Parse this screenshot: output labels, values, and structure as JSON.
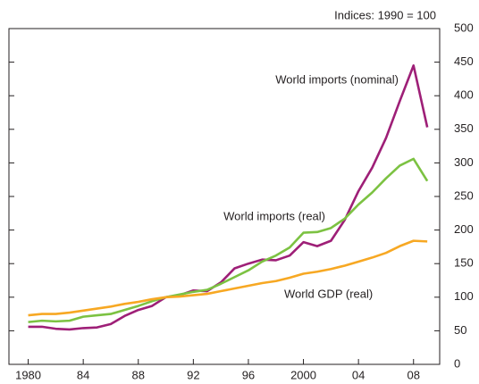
{
  "chart_data": {
    "type": "line",
    "subtitle": "Indices:  1990 = 100",
    "x": [
      1980,
      1981,
      1982,
      1983,
      1984,
      1985,
      1986,
      1987,
      1988,
      1989,
      1990,
      1991,
      1992,
      1993,
      1994,
      1995,
      1996,
      1997,
      1998,
      1999,
      2000,
      2001,
      2002,
      2003,
      2004,
      2005,
      2006,
      2007,
      2008,
      2009
    ],
    "series": [
      {
        "name": "World imports (nominal)",
        "color": "#9e1f77",
        "values": [
          56,
          56,
          53,
          52,
          54,
          55,
          60,
          72,
          81,
          87,
          100,
          103,
          110,
          109,
          122,
          143,
          150,
          156,
          155,
          162,
          182,
          176,
          184,
          215,
          258,
          293,
          337,
          392,
          445,
          353
        ]
      },
      {
        "name": "World imports (real)",
        "color": "#7cc242",
        "values": [
          63,
          65,
          64,
          65,
          71,
          73,
          75,
          81,
          87,
          94,
          100,
          104,
          108,
          111,
          120,
          130,
          140,
          153,
          162,
          174,
          196,
          197,
          203,
          217,
          238,
          256,
          277,
          296,
          306,
          273
        ]
      },
      {
        "name": "World GDP (real)",
        "color": "#f7a823",
        "values": [
          73,
          75,
          75,
          77,
          80,
          83,
          86,
          90,
          93,
          97,
          100,
          101,
          103,
          105,
          109,
          113,
          117,
          121,
          124,
          129,
          135,
          138,
          142,
          147,
          153,
          159,
          166,
          176,
          184,
          183
        ]
      }
    ],
    "xlim": [
      1978.6,
      2009.9
    ],
    "xticks": [
      {
        "value": 1980,
        "label": "1980"
      },
      {
        "value": 1984,
        "label": "84"
      },
      {
        "value": 1988,
        "label": "88"
      },
      {
        "value": 1992,
        "label": "92"
      },
      {
        "value": 1996,
        "label": "96"
      },
      {
        "value": 2000,
        "label": "2000"
      },
      {
        "value": 2004,
        "label": "04"
      },
      {
        "value": 2008,
        "label": "08"
      }
    ],
    "ylim": [
      0,
      500
    ],
    "yticks": [
      0,
      50,
      100,
      150,
      200,
      250,
      300,
      350,
      400,
      450,
      500
    ],
    "grid": false
  }
}
